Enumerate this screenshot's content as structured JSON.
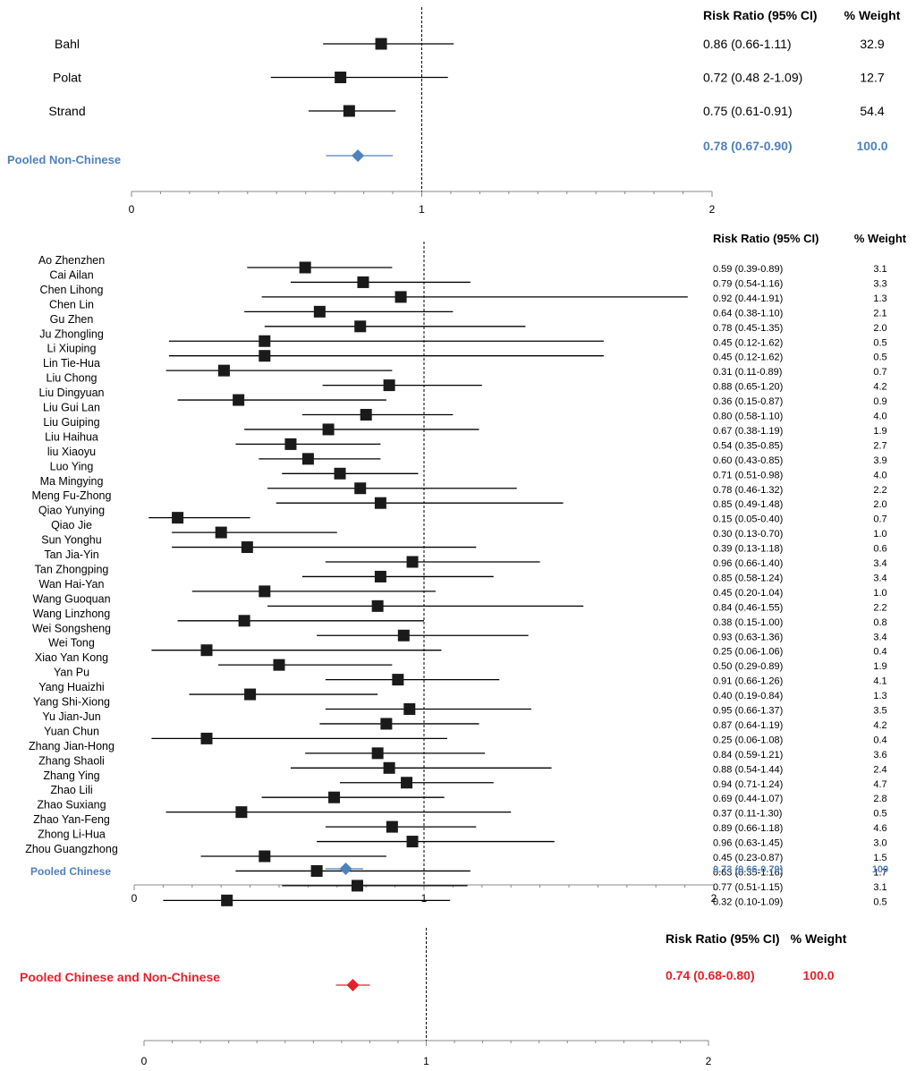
{
  "chart_data": [
    {
      "type": "forest",
      "name": "non-chinese",
      "xlim": [
        0,
        2
      ],
      "ticks": [
        "0",
        "1",
        "2"
      ],
      "header_rr": "Risk Ratio (95% CI)",
      "header_wt": "% Weight",
      "studies": [
        {
          "label": "Bahl",
          "rr": 0.86,
          "lo": 0.66,
          "hi": 1.11,
          "ci_text": "0.86 (0.66-1.11)",
          "weight": "32.9"
        },
        {
          "label": "Polat",
          "rr": 0.72,
          "lo": 0.48,
          "hi": 1.09,
          "ci_text": "0.72 (0.48 2-1.09)",
          "weight": "12.7"
        },
        {
          "label": "Strand",
          "rr": 0.75,
          "lo": 0.61,
          "hi": 0.91,
          "ci_text": "0.75 (0.61-0.91)",
          "weight": "54.4"
        }
      ],
      "pooled": {
        "label": "Pooled Non-Chinese",
        "rr": 0.78,
        "lo": 0.67,
        "hi": 0.9,
        "ci_text": "0.78 (0.67-0.90)",
        "weight": "100.0",
        "color": "#4f81bd"
      }
    },
    {
      "type": "forest",
      "name": "chinese",
      "xlim": [
        0,
        2
      ],
      "ticks": [
        "0",
        "1",
        "2"
      ],
      "header_rr": "Risk Ratio (95% CI)",
      "header_wt": "% Weight",
      "studies": [
        {
          "label": "Ao Zhenzhen",
          "rr": 0.59,
          "lo": 0.39,
          "hi": 0.89,
          "ci_text": "0.59 (0.39-0.89)",
          "weight": "3.1"
        },
        {
          "label": "Cai Ailan",
          "rr": 0.79,
          "lo": 0.54,
          "hi": 1.16,
          "ci_text": "0.79 (0.54-1.16)",
          "weight": "3.3"
        },
        {
          "label": "Chen Lihong",
          "rr": 0.92,
          "lo": 0.44,
          "hi": 1.91,
          "ci_text": "0.92 (0.44-1.91)",
          "weight": "1.3"
        },
        {
          "label": "Chen Lin",
          "rr": 0.64,
          "lo": 0.38,
          "hi": 1.1,
          "ci_text": "0.64 (0.38-1.10)",
          "weight": "2.1"
        },
        {
          "label": "Gu Zhen",
          "rr": 0.78,
          "lo": 0.45,
          "hi": 1.35,
          "ci_text": "0.78 (0.45-1.35)",
          "weight": "2.0"
        },
        {
          "label": "Ju Zhongling",
          "rr": 0.45,
          "lo": 0.12,
          "hi": 1.62,
          "ci_text": "0.45 (0.12-1.62)",
          "weight": "0.5"
        },
        {
          "label": "Li Xiuping",
          "rr": 0.45,
          "lo": 0.12,
          "hi": 1.62,
          "ci_text": "0.45 (0.12-1.62)",
          "weight": "0.5"
        },
        {
          "label": "Lin Tie-Hua",
          "rr": 0.31,
          "lo": 0.11,
          "hi": 0.89,
          "ci_text": "0.31 (0.11-0.89)",
          "weight": "0.7"
        },
        {
          "label": "Liu Chong",
          "rr": 0.88,
          "lo": 0.65,
          "hi": 1.2,
          "ci_text": "0.88 (0.65-1.20)",
          "weight": "4.2"
        },
        {
          "label": "Liu Dingyuan",
          "rr": 0.36,
          "lo": 0.15,
          "hi": 0.87,
          "ci_text": "0.36 (0.15-0.87)",
          "weight": "0.9"
        },
        {
          "label": "Liu Gui Lan",
          "rr": 0.8,
          "lo": 0.58,
          "hi": 1.1,
          "ci_text": "0.80 (0.58-1.10)",
          "weight": "4.0"
        },
        {
          "label": "Liu Guiping",
          "rr": 0.67,
          "lo": 0.38,
          "hi": 1.19,
          "ci_text": "0.67 (0.38-1.19)",
          "weight": "1.9"
        },
        {
          "label": "Liu Haihua",
          "rr": 0.54,
          "lo": 0.35,
          "hi": 0.85,
          "ci_text": "0.54 (0.35-0.85)",
          "weight": "2.7"
        },
        {
          "label": "liu Xiaoyu",
          "rr": 0.6,
          "lo": 0.43,
          "hi": 0.85,
          "ci_text": "0.60 (0.43-0.85)",
          "weight": "3.9"
        },
        {
          "label": "Luo Ying",
          "rr": 0.71,
          "lo": 0.51,
          "hi": 0.98,
          "ci_text": "0.71 (0.51-0.98)",
          "weight": "4.0"
        },
        {
          "label": "Ma Mingying",
          "rr": 0.78,
          "lo": 0.46,
          "hi": 1.32,
          "ci_text": "0.78 (0.46-1.32)",
          "weight": "2.2"
        },
        {
          "label": "Meng Fu-Zhong",
          "rr": 0.85,
          "lo": 0.49,
          "hi": 1.48,
          "ci_text": "0.85 (0.49-1.48)",
          "weight": "2.0"
        },
        {
          "label": "Qiao Yunying",
          "rr": 0.15,
          "lo": 0.05,
          "hi": 0.4,
          "ci_text": "0.15 (0.05-0.40)",
          "weight": "0.7"
        },
        {
          "label": "Qiao Jie",
          "rr": 0.3,
          "lo": 0.13,
          "hi": 0.7,
          "ci_text": "0.30 (0.13-0.70)",
          "weight": "1.0"
        },
        {
          "label": "Sun Yonghu",
          "rr": 0.39,
          "lo": 0.13,
          "hi": 1.18,
          "ci_text": "0.39 (0.13-1.18)",
          "weight": "0.6"
        },
        {
          "label": "Tan Jia-Yin",
          "rr": 0.96,
          "lo": 0.66,
          "hi": 1.4,
          "ci_text": "0.96 (0.66-1.40)",
          "weight": "3.4"
        },
        {
          "label": "Tan Zhongping",
          "rr": 0.85,
          "lo": 0.58,
          "hi": 1.24,
          "ci_text": "0.85 (0.58-1.24)",
          "weight": "3.4"
        },
        {
          "label": "Wan Hai-Yan",
          "rr": 0.45,
          "lo": 0.2,
          "hi": 1.04,
          "ci_text": "0.45 (0.20-1.04)",
          "weight": "1.0"
        },
        {
          "label": "Wang Guoquan",
          "rr": 0.84,
          "lo": 0.46,
          "hi": 1.55,
          "ci_text": "0.84 (0.46-1.55)",
          "weight": "2.2"
        },
        {
          "label": "Wang Linzhong",
          "rr": 0.38,
          "lo": 0.15,
          "hi": 1.0,
          "ci_text": "0.38 (0.15-1.00)",
          "weight": "0.8"
        },
        {
          "label": "Wei Songsheng",
          "rr": 0.93,
          "lo": 0.63,
          "hi": 1.36,
          "ci_text": "0.93 (0.63-1.36)",
          "weight": "3.4"
        },
        {
          "label": "Wei Tong",
          "rr": 0.25,
          "lo": 0.06,
          "hi": 1.06,
          "ci_text": "0.25 (0.06-1.06)",
          "weight": "0.4"
        },
        {
          "label": "Xiao Yan Kong",
          "rr": 0.5,
          "lo": 0.29,
          "hi": 0.89,
          "ci_text": "0.50 (0.29-0.89)",
          "weight": "1.9"
        },
        {
          "label": "Yan Pu",
          "rr": 0.91,
          "lo": 0.66,
          "hi": 1.26,
          "ci_text": "0.91 (0.66-1.26)",
          "weight": "4.1"
        },
        {
          "label": "Yang Huaizhi",
          "rr": 0.4,
          "lo": 0.19,
          "hi": 0.84,
          "ci_text": "0.40 (0.19-0.84)",
          "weight": "1.3"
        },
        {
          "label": "Yang Shi-Xiong",
          "rr": 0.95,
          "lo": 0.66,
          "hi": 1.37,
          "ci_text": "0.95 (0.66-1.37)",
          "weight": "3.5"
        },
        {
          "label": "Yu Jian-Jun",
          "rr": 0.87,
          "lo": 0.64,
          "hi": 1.19,
          "ci_text": "0.87 (0.64-1.19)",
          "weight": "4.2"
        },
        {
          "label": "Yuan Chun",
          "rr": 0.25,
          "lo": 0.06,
          "hi": 1.08,
          "ci_text": "0.25 (0.06-1.08)",
          "weight": "0.4"
        },
        {
          "label": "Zhang Jian-Hong",
          "rr": 0.84,
          "lo": 0.59,
          "hi": 1.21,
          "ci_text": "0.84 (0.59-1.21)",
          "weight": "3.6"
        },
        {
          "label": "Zhang Shaoli",
          "rr": 0.88,
          "lo": 0.54,
          "hi": 1.44,
          "ci_text": "0.88 (0.54-1.44)",
          "weight": "2.4"
        },
        {
          "label": "Zhang Ying",
          "rr": 0.94,
          "lo": 0.71,
          "hi": 1.24,
          "ci_text": "0.94 (0.71-1.24)",
          "weight": "4.7"
        },
        {
          "label": "Zhao Lili",
          "rr": 0.69,
          "lo": 0.44,
          "hi": 1.07,
          "ci_text": "0.69 (0.44-1.07)",
          "weight": "2.8"
        },
        {
          "label": "Zhao Suxiang",
          "rr": 0.37,
          "lo": 0.11,
          "hi": 1.3,
          "ci_text": "0.37 (0.11-1.30)",
          "weight": "0.5"
        },
        {
          "label": "Zhao Yan-Feng",
          "rr": 0.89,
          "lo": 0.66,
          "hi": 1.18,
          "ci_text": "0.89 (0.66-1.18)",
          "weight": "4.6"
        },
        {
          "label": "Zhong Li-Hua",
          "rr": 0.96,
          "lo": 0.63,
          "hi": 1.45,
          "ci_text": "0.96 (0.63-1.45)",
          "weight": "3.0"
        },
        {
          "label": "Zhou Guangzhong",
          "rr": 0.45,
          "lo": 0.23,
          "hi": 0.87,
          "ci_text": "0.45 (0.23-0.87)",
          "weight": "1.5"
        },
        {
          "label": "",
          "rr": 0.63,
          "lo": 0.35,
          "hi": 1.16,
          "ci_text": "0.63 (0.35-1.16)",
          "weight": "1.7"
        },
        {
          "label": "",
          "rr": 0.77,
          "lo": 0.51,
          "hi": 1.15,
          "ci_text": "0.77 (0.51-1.15)",
          "weight": "3.1"
        },
        {
          "label": "",
          "rr": 0.32,
          "lo": 0.1,
          "hi": 1.09,
          "ci_text": "0.32 (0.10-1.09)",
          "weight": "0.5"
        }
      ],
      "pooled": {
        "label": "Pooled Chinese",
        "rr": 0.73,
        "lo": 0.66,
        "hi": 0.79,
        "ci_text": "0.73 (0.66-0.79)",
        "weight": "100",
        "color": "#4f81bd"
      }
    },
    {
      "type": "forest",
      "name": "overall",
      "xlim": [
        0,
        2
      ],
      "ticks": [
        "0",
        "1",
        "2"
      ],
      "header_rr": "Risk Ratio (95% CI)",
      "header_wt": "% Weight",
      "studies": [],
      "pooled": {
        "label": "Pooled Chinese and Non-Chinese",
        "rr": 0.74,
        "lo": 0.68,
        "hi": 0.8,
        "ci_text": "0.74  (0.68-0.80)",
        "weight": "100.0",
        "color": "#e8202a"
      }
    }
  ]
}
